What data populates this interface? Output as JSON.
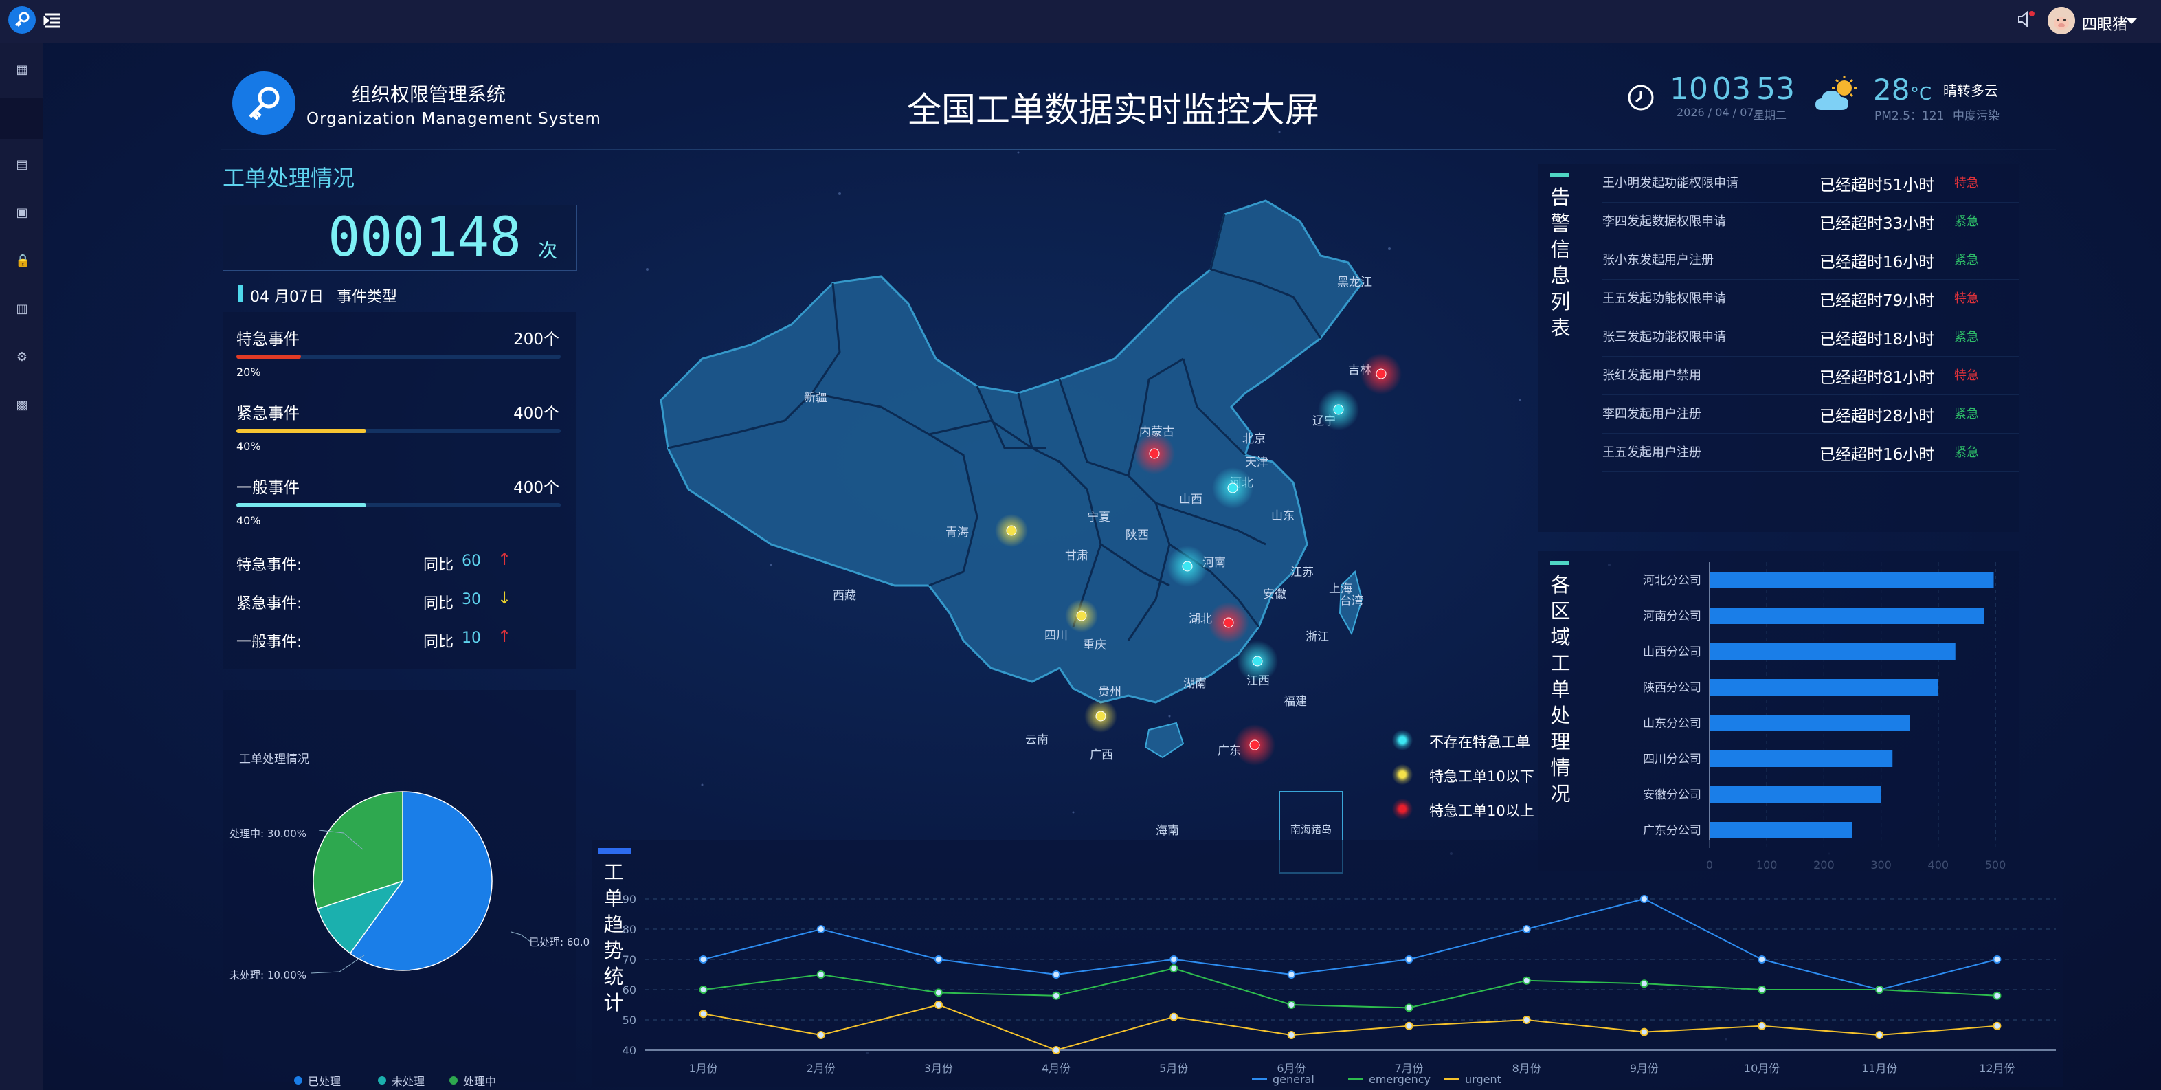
{
  "topbar": {
    "username": "四眼猪"
  },
  "header": {
    "system_name_cn": "组织权限管理系统",
    "system_name_en": "Organization Management System",
    "screen_title": "全国工单数据实时监控大屏",
    "time": {
      "hh": "10",
      "mm": "03",
      "ss": "53"
    },
    "date": "2026 / 04 / 07",
    "weekday": "星期二",
    "temperature": "28",
    "temp_unit": "°C",
    "weather": "晴转多云",
    "pm": "PM2.5：121",
    "pollution": "中度污染"
  },
  "counter": {
    "section_title": "工单处理情况",
    "value": "000148",
    "unit": "次",
    "date_label": "04 月07日",
    "type_label": "事件类型"
  },
  "events": [
    {
      "name": "特急事件",
      "count": "200个",
      "percent_label": "20%",
      "fraction": 0.2,
      "color": "#e23b25"
    },
    {
      "name": "紧急事件",
      "count": "400个",
      "percent_label": "40%",
      "fraction": 0.4,
      "color": "#f7c532"
    },
    {
      "name": "一般事件",
      "count": "400个",
      "percent_label": "40%",
      "fraction": 0.4,
      "color": "#78e8ee"
    }
  ],
  "yoy": [
    {
      "name": "特急事件:",
      "label": "同比",
      "value": "60",
      "arrow": "↑",
      "arrow_color": "#e0323a"
    },
    {
      "name": "紧急事件:",
      "label": "同比",
      "value": "30",
      "arrow": "↓",
      "arrow_color": "#e8d02c"
    },
    {
      "name": "一般事件:",
      "label": "同比",
      "value": "10",
      "arrow": "↑",
      "arrow_color": "#e0323a"
    }
  ],
  "pie": {
    "title": "工单处理情况",
    "label_processed": "已处理: 60.0",
    "label_unprocessed": "未处理: 10.00%",
    "label_processing": "处理中: 30.00%",
    "legend": [
      {
        "name": "已处理",
        "color": "#1a7ee8"
      },
      {
        "name": "未处理",
        "color": "#1bb0ae"
      },
      {
        "name": "处理中",
        "color": "#2ea84f"
      }
    ]
  },
  "map": {
    "provinces": [
      "新疆",
      "西藏",
      "青海",
      "甘肃",
      "宁夏",
      "陕西",
      "四川",
      "云南",
      "贵州",
      "重庆",
      "广西",
      "广东",
      "海南",
      "湖南",
      "湖北",
      "河南",
      "山西",
      "内蒙古",
      "黑龙江",
      "吉林",
      "辽宁",
      "北京",
      "天津",
      "河北",
      "山东",
      "江苏",
      "安徽",
      "上海",
      "浙江",
      "江西",
      "福建",
      "台湾"
    ],
    "south_sea_label": "南海诸岛",
    "legend": [
      {
        "name": "不存在特急工单",
        "color": "#21d0de"
      },
      {
        "name": "特急工单10以下",
        "color": "#f3e04a"
      },
      {
        "name": "特急工单10以上",
        "color": "#e81f2c"
      }
    ]
  },
  "alerts": {
    "title": "告警信息列表",
    "items": [
      {
        "desc": "王小明发起功能权限申请",
        "overtime": "已经超时51小时",
        "level": "特急",
        "level_color": "#e0323a"
      },
      {
        "desc": "李四发起数据权限申请",
        "overtime": "已经超时33小时",
        "level": "紧急",
        "level_color": "#2ebd68"
      },
      {
        "desc": "张小东发起用户注册",
        "overtime": "已经超时16小时",
        "level": "紧急",
        "level_color": "#2ebd68"
      },
      {
        "desc": "王五发起功能权限申请",
        "overtime": "已经超时79小时",
        "level": "特急",
        "level_color": "#e0323a"
      },
      {
        "desc": "张三发起功能权限申请",
        "overtime": "已经超时18小时",
        "level": "紧急",
        "level_color": "#2ebd68"
      },
      {
        "desc": "张红发起用户禁用",
        "overtime": "已经超时81小时",
        "level": "特急",
        "level_color": "#e0323a"
      },
      {
        "desc": "李四发起用户注册",
        "overtime": "已经超时28小时",
        "level": "紧急",
        "level_color": "#2ebd68"
      },
      {
        "desc": "王五发起用户注册",
        "overtime": "已经超时16小时",
        "level": "紧急",
        "level_color": "#2ebd68"
      }
    ]
  },
  "region_title": "各区域工单处理情况",
  "trend_title": "工单趋势统计",
  "chart_data": [
    {
      "type": "pie",
      "title": "工单处理情况",
      "slices": [
        {
          "name": "已处理",
          "value": 60.0
        },
        {
          "name": "未处理",
          "value": 10.0
        },
        {
          "name": "处理中",
          "value": 30.0
        }
      ]
    },
    {
      "type": "bar",
      "orientation": "horizontal",
      "categories": [
        "河北分公司",
        "河南分公司",
        "山西分公司",
        "陕西分公司",
        "山东分公司",
        "四川分公司",
        "安徽分公司",
        "广东分公司"
      ],
      "values": [
        497,
        480,
        430,
        400,
        350,
        320,
        300,
        250
      ],
      "xlim": [
        0,
        500
      ],
      "xticks": [
        "0",
        "100",
        "200",
        "300",
        "400",
        "500"
      ],
      "color": "#1a7ee8"
    },
    {
      "type": "line",
      "categories": [
        "1月份",
        "2月份",
        "3月份",
        "4月份",
        "5月份",
        "6月份",
        "7月份",
        "8月份",
        "9月份",
        "10月份",
        "11月份",
        "12月份"
      ],
      "ylim": [
        40,
        90
      ],
      "yticks": [
        "40",
        "50",
        "60",
        "70",
        "80",
        "90"
      ],
      "series": [
        {
          "name": "general",
          "color": "#2d8cf0",
          "values": [
            70,
            80,
            70,
            65,
            70,
            65,
            70,
            80,
            90,
            70,
            60,
            70
          ]
        },
        {
          "name": "emergency",
          "color": "#2ebd4e",
          "values": [
            60,
            65,
            59,
            58,
            67,
            55,
            54,
            63,
            62,
            60,
            60,
            58
          ]
        },
        {
          "name": "urgent",
          "color": "#f5c22c",
          "values": [
            52,
            45,
            55,
            40,
            51,
            45,
            48,
            50,
            46,
            48,
            45,
            48
          ]
        }
      ]
    }
  ]
}
